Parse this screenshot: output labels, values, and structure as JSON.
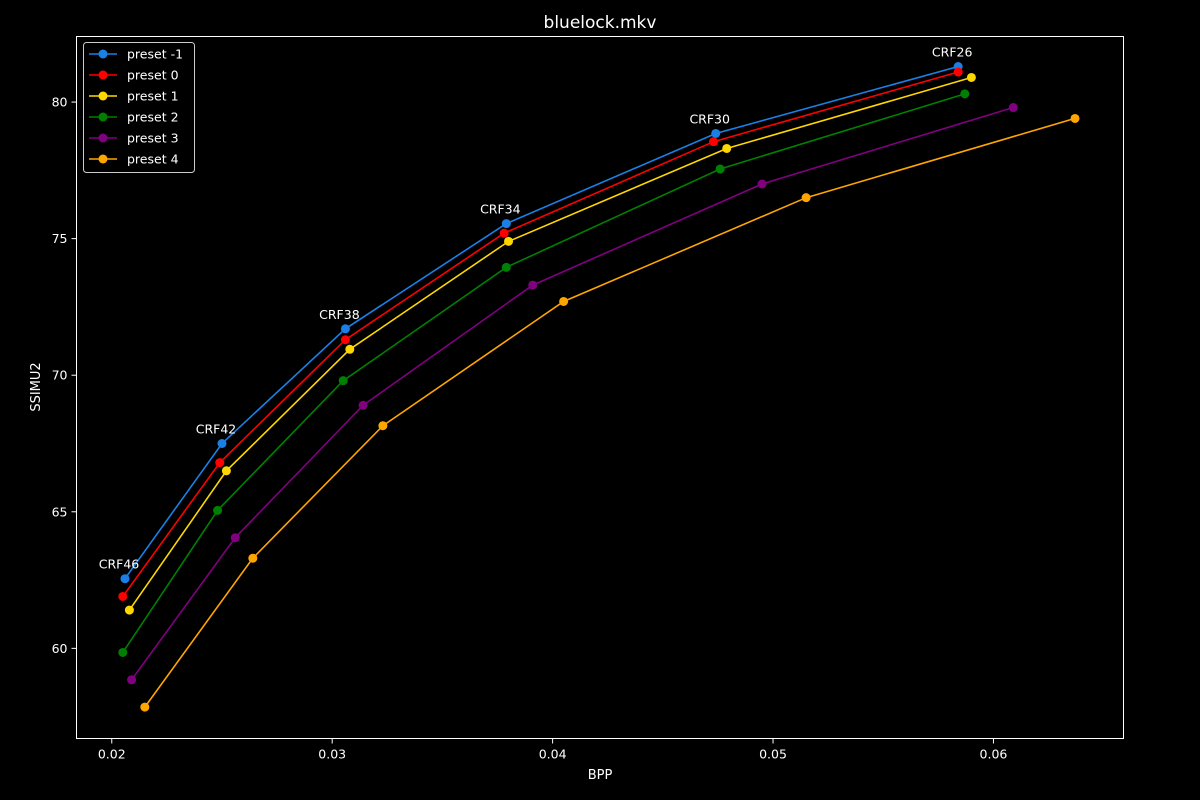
{
  "chart_data": {
    "type": "line",
    "title": "bluelock.mkv",
    "xlabel": "BPP",
    "ylabel": "SSIMU2",
    "xlim": [
      0.0184,
      0.0659
    ],
    "ylim": [
      56.7,
      82.4
    ],
    "xticks": [
      0.02,
      0.03,
      0.04,
      0.05,
      0.06
    ],
    "xtick_labels": [
      "0.02",
      "0.03",
      "0.04",
      "0.05",
      "0.06"
    ],
    "yticks": [
      60,
      65,
      70,
      75,
      80
    ],
    "ytick_labels": [
      "60",
      "65",
      "70",
      "75",
      "80"
    ],
    "grid": false,
    "legend_position": "top-left",
    "series": [
      {
        "name": "preset -1",
        "color": "#1a80e6",
        "points": [
          [
            0.0206,
            62.55
          ],
          [
            0.025,
            67.5
          ],
          [
            0.0306,
            71.7
          ],
          [
            0.0379,
            75.55
          ],
          [
            0.0474,
            78.85
          ],
          [
            0.0584,
            81.3
          ]
        ]
      },
      {
        "name": "preset 0",
        "color": "#ff0000",
        "points": [
          [
            0.0205,
            61.9
          ],
          [
            0.0249,
            66.8
          ],
          [
            0.0306,
            71.3
          ],
          [
            0.0378,
            75.2
          ],
          [
            0.0473,
            78.55
          ],
          [
            0.0584,
            81.1
          ]
        ]
      },
      {
        "name": "preset 1",
        "color": "#ffd700",
        "points": [
          [
            0.0208,
            61.4
          ],
          [
            0.0252,
            66.5
          ],
          [
            0.0308,
            70.95
          ],
          [
            0.038,
            74.9
          ],
          [
            0.0479,
            78.3
          ],
          [
            0.059,
            80.9
          ]
        ]
      },
      {
        "name": "preset 2",
        "color": "#008000",
        "points": [
          [
            0.0205,
            59.85
          ],
          [
            0.0248,
            65.05
          ],
          [
            0.0305,
            69.8
          ],
          [
            0.0379,
            73.95
          ],
          [
            0.0476,
            77.55
          ],
          [
            0.0587,
            80.3
          ]
        ]
      },
      {
        "name": "preset 3",
        "color": "#800080",
        "points": [
          [
            0.0209,
            58.85
          ],
          [
            0.0256,
            64.05
          ],
          [
            0.0314,
            68.9
          ],
          [
            0.0391,
            73.3
          ],
          [
            0.0495,
            77.0
          ],
          [
            0.0609,
            79.8
          ]
        ]
      },
      {
        "name": "preset 4",
        "color": "#ffa500",
        "points": [
          [
            0.0215,
            57.85
          ],
          [
            0.0264,
            63.3
          ],
          [
            0.0323,
            68.15
          ],
          [
            0.0405,
            72.7
          ],
          [
            0.0515,
            76.5
          ],
          [
            0.0637,
            79.4
          ]
        ]
      }
    ],
    "annotations": [
      {
        "text": "CRF46",
        "x": 0.0206,
        "y": 62.55
      },
      {
        "text": "CRF42",
        "x": 0.025,
        "y": 67.5
      },
      {
        "text": "CRF38",
        "x": 0.0306,
        "y": 71.7
      },
      {
        "text": "CRF34",
        "x": 0.0379,
        "y": 75.55
      },
      {
        "text": "CRF30",
        "x": 0.0474,
        "y": 78.85
      },
      {
        "text": "CRF26",
        "x": 0.0584,
        "y": 81.3
      }
    ]
  }
}
